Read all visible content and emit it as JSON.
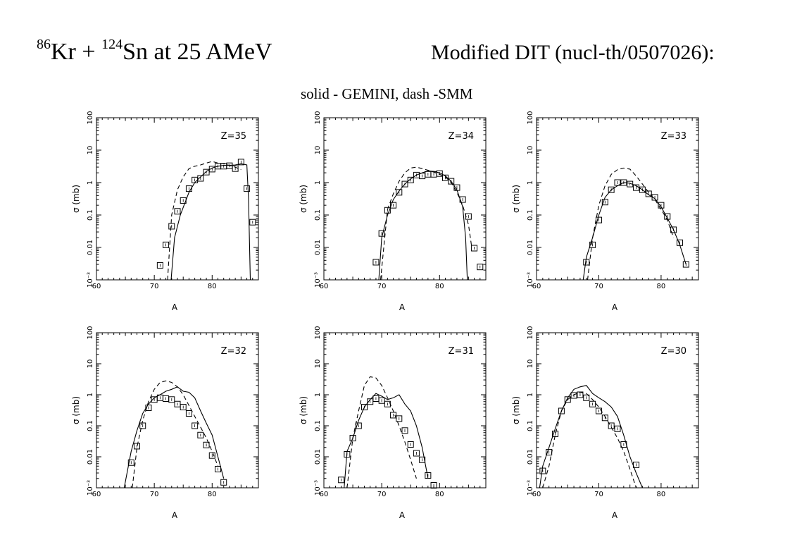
{
  "header": {
    "title_prefix_mass": "86",
    "title_kr": "Kr + ",
    "title_sn_mass": "124",
    "title_rest": "Sn at 25 AMeV",
    "right_title": "Modified DIT (nucl-th/0507026):",
    "subtitle": "solid - GEMINI, dash -SMM"
  },
  "chart_data": [
    {
      "type": "line",
      "label": "Z=35",
      "xlabel": "A",
      "ylabel": "σ (mb)",
      "xlim": [
        60,
        88
      ],
      "ylim": [
        0.001,
        100
      ],
      "log_y": true,
      "xticks": [
        60,
        70,
        80
      ],
      "yticks": [
        "10⁻³",
        "0.01",
        "0.1",
        "1",
        "10",
        "100"
      ],
      "series": [
        {
          "style": "markers-square",
          "x": [
            71,
            72,
            73,
            74,
            75,
            76,
            77,
            78,
            79,
            80,
            81,
            82,
            83,
            84,
            85,
            86,
            87
          ],
          "y": [
            0.0028,
            0.012,
            0.045,
            0.13,
            0.28,
            0.65,
            1.2,
            1.35,
            2.1,
            2.6,
            3.2,
            3.2,
            3.3,
            2.7,
            4.3,
            0.65,
            0.06
          ]
        },
        {
          "style": "solid",
          "x": [
            72.9,
            73.5,
            74.5,
            76,
            77,
            78,
            79,
            80,
            81,
            82,
            83,
            84,
            85,
            86,
            86.3,
            86.6
          ],
          "y": [
            0.001,
            0.02,
            0.1,
            0.5,
            1,
            1.5,
            2.2,
            2.8,
            3.2,
            3.4,
            3.4,
            3.5,
            3.8,
            3.5,
            0.3,
            0.001
          ]
        },
        {
          "style": "dashed",
          "x": [
            72.3,
            73,
            74,
            75,
            76,
            77,
            78,
            79,
            80,
            81,
            82,
            83,
            84,
            85
          ],
          "y": [
            0.001,
            0.1,
            0.6,
            1.5,
            2.7,
            3.2,
            3.5,
            4,
            4.5,
            4,
            3.8,
            3.4,
            3,
            2.5
          ]
        }
      ]
    },
    {
      "type": "line",
      "label": "Z=34",
      "xlabel": "A",
      "ylabel": "σ (mb)",
      "xlim": [
        60,
        88
      ],
      "ylim": [
        0.001,
        100
      ],
      "log_y": true,
      "xticks": [
        60,
        70,
        80
      ],
      "yticks": [
        "10⁻³",
        "0.01",
        "0.1",
        "1",
        "10",
        "100"
      ],
      "series": [
        {
          "style": "markers-square",
          "x": [
            69,
            70,
            71,
            72,
            73,
            74,
            75,
            76,
            77,
            78,
            79,
            80,
            81,
            82,
            83,
            84,
            85,
            86,
            87
          ],
          "y": [
            0.0035,
            0.027,
            0.14,
            0.2,
            0.5,
            0.9,
            1.2,
            1.7,
            1.6,
            1.8,
            1.8,
            1.9,
            1.4,
            1.1,
            0.7,
            0.3,
            0.09,
            0.0095,
            0.0025
          ]
        },
        {
          "style": "solid",
          "x": [
            69.5,
            70,
            71,
            72,
            73,
            74,
            75,
            76,
            77,
            78,
            79,
            80,
            81,
            82,
            83,
            84,
            84.5,
            84.8
          ],
          "y": [
            0.001,
            0.02,
            0.1,
            0.3,
            0.55,
            0.9,
            1.3,
            1.7,
            2,
            2.3,
            2.2,
            2,
            1.6,
            1.1,
            0.6,
            0.18,
            0.02,
            0.001
          ]
        },
        {
          "style": "dashed",
          "x": [
            69.8,
            71,
            72,
            73,
            74,
            75,
            76,
            77,
            78,
            79,
            80,
            81,
            82,
            83,
            84,
            85,
            85.5
          ],
          "y": [
            0.001,
            0.15,
            0.45,
            1.1,
            2,
            2.8,
            3,
            2.7,
            2.4,
            2.1,
            1.8,
            1.5,
            1,
            0.5,
            0.2,
            0.05,
            0.012
          ]
        }
      ]
    },
    {
      "type": "line",
      "label": "Z=33",
      "xlabel": "A",
      "ylabel": "σ (mb)",
      "xlim": [
        60,
        86
      ],
      "ylim": [
        0.001,
        100
      ],
      "log_y": true,
      "xticks": [
        60,
        70,
        80
      ],
      "yticks": [
        "10⁻³",
        "0.01",
        "0.1",
        "1",
        "10",
        "100"
      ],
      "series": [
        {
          "style": "markers-square",
          "x": [
            68,
            69,
            70,
            71,
            72,
            73,
            74,
            75,
            76,
            77,
            78,
            79,
            80,
            81,
            82,
            83,
            84
          ],
          "y": [
            0.0035,
            0.012,
            0.07,
            0.25,
            0.6,
            1,
            1,
            0.9,
            0.7,
            0.6,
            0.45,
            0.35,
            0.2,
            0.09,
            0.035,
            0.014,
            0.003
          ]
        },
        {
          "style": "solid",
          "x": [
            67.5,
            68,
            69,
            70,
            71,
            72,
            73,
            74,
            75,
            76,
            77,
            78,
            79,
            80,
            81,
            82,
            83,
            84
          ],
          "y": [
            0.001,
            0.005,
            0.02,
            0.1,
            0.35,
            0.6,
            0.8,
            1,
            0.95,
            0.8,
            0.6,
            0.42,
            0.32,
            0.18,
            0.08,
            0.035,
            0.012,
            0.003
          ]
        },
        {
          "style": "dashed",
          "x": [
            68.2,
            69,
            70,
            71,
            72,
            73,
            74,
            75,
            76,
            77,
            78,
            79,
            80,
            81,
            82
          ],
          "y": [
            0.001,
            0.02,
            0.2,
            0.8,
            1.8,
            2.5,
            2.8,
            2.6,
            1.6,
            0.9,
            0.5,
            0.3,
            0.15,
            0.07,
            0.02
          ]
        }
      ]
    },
    {
      "type": "line",
      "label": "Z=32",
      "xlabel": "A",
      "ylabel": "σ (mb)",
      "xlim": [
        60,
        88
      ],
      "ylim": [
        0.001,
        100
      ],
      "log_y": true,
      "xticks": [
        60,
        70,
        80
      ],
      "yticks": [
        "10⁻³",
        "0.01",
        "0.1",
        "1",
        "10",
        "100"
      ],
      "series": [
        {
          "style": "markers-square",
          "x": [
            66,
            67,
            68,
            69,
            70,
            71,
            72,
            73,
            74,
            75,
            76,
            77,
            78,
            79,
            80,
            81,
            82
          ],
          "y": [
            0.0065,
            0.022,
            0.1,
            0.38,
            0.7,
            0.8,
            0.75,
            0.7,
            0.5,
            0.4,
            0.25,
            0.1,
            0.05,
            0.024,
            0.011,
            0.004,
            0.0015
          ]
        },
        {
          "style": "solid",
          "x": [
            64.8,
            66,
            67,
            68,
            69,
            70,
            71,
            72,
            73,
            74,
            75,
            76,
            77,
            78,
            79,
            80,
            81,
            82
          ],
          "y": [
            0.001,
            0.015,
            0.07,
            0.25,
            0.5,
            0.8,
            1,
            1.3,
            1.5,
            1.8,
            1.3,
            1.2,
            0.8,
            0.3,
            0.12,
            0.05,
            0.01,
            0.002
          ]
        },
        {
          "style": "dashed",
          "x": [
            66.2,
            67,
            68,
            69,
            70,
            71,
            72,
            73,
            74,
            75,
            76,
            77,
            78,
            79,
            80,
            81
          ],
          "y": [
            0.001,
            0.02,
            0.15,
            0.6,
            1.5,
            2.5,
            2.8,
            2.5,
            1.8,
            1,
            0.45,
            0.2,
            0.09,
            0.04,
            0.015,
            0.005
          ]
        }
      ]
    },
    {
      "type": "line",
      "label": "Z=31",
      "xlabel": "A",
      "ylabel": "σ (mb)",
      "xlim": [
        60,
        88
      ],
      "ylim": [
        0.001,
        100
      ],
      "log_y": true,
      "xticks": [
        60,
        70,
        80
      ],
      "yticks": [
        "10⁻³",
        "0.01",
        "0.1",
        "1",
        "10",
        "100"
      ],
      "series": [
        {
          "style": "markers-square",
          "x": [
            63,
            64,
            65,
            66,
            67,
            68,
            69,
            70,
            71,
            72,
            73,
            74,
            75,
            76,
            77,
            78,
            79
          ],
          "y": [
            0.0018,
            0.012,
            0.04,
            0.1,
            0.4,
            0.6,
            0.75,
            0.65,
            0.5,
            0.22,
            0.17,
            0.07,
            0.025,
            0.013,
            0.008,
            0.0025,
            0.0012
          ]
        },
        {
          "style": "solid",
          "x": [
            63.5,
            64,
            65,
            66,
            67,
            68,
            69,
            70,
            71,
            72,
            73,
            74,
            75,
            76,
            77,
            78
          ],
          "y": [
            0.001,
            0.015,
            0.04,
            0.15,
            0.4,
            0.7,
            1.1,
            0.9,
            0.7,
            0.8,
            1,
            0.5,
            0.3,
            0.1,
            0.02,
            0.002
          ]
        },
        {
          "style": "dashed",
          "x": [
            64,
            65,
            66,
            67,
            68,
            69,
            70,
            71,
            72,
            73,
            74,
            75,
            76
          ],
          "y": [
            0.001,
            0.04,
            0.3,
            2,
            3.8,
            3.5,
            2,
            0.8,
            0.3,
            0.1,
            0.03,
            0.008,
            0.002
          ]
        }
      ]
    },
    {
      "type": "line",
      "label": "Z=30",
      "xlabel": "A",
      "ylabel": "σ (mb)",
      "xlim": [
        60,
        86
      ],
      "ylim": [
        0.001,
        100
      ],
      "log_y": true,
      "xticks": [
        60,
        70,
        80
      ],
      "yticks": [
        "10⁻³",
        "0.01",
        "0.1",
        "1",
        "10",
        "100"
      ],
      "series": [
        {
          "style": "markers-square",
          "x": [
            61,
            62,
            63,
            64,
            65,
            66,
            67,
            68,
            69,
            70,
            71,
            72,
            73,
            74,
            76
          ],
          "y": [
            0.0035,
            0.014,
            0.055,
            0.3,
            0.7,
            0.95,
            1,
            0.8,
            0.5,
            0.3,
            0.18,
            0.1,
            0.08,
            0.025,
            0.0055
          ]
        },
        {
          "style": "solid",
          "x": [
            60.5,
            61,
            62,
            63,
            64,
            65,
            66,
            67,
            68,
            69,
            70,
            71,
            72,
            73,
            74,
            75,
            76,
            77
          ],
          "y": [
            0.001,
            0.005,
            0.02,
            0.08,
            0.3,
            0.8,
            1.5,
            1.8,
            2,
            1.1,
            0.8,
            0.6,
            0.4,
            0.2,
            0.05,
            0.01,
            0.003,
            0.001
          ]
        },
        {
          "style": "dashed",
          "x": [
            61,
            62,
            63,
            64,
            65,
            66,
            67,
            68,
            69,
            70,
            71,
            72,
            73,
            74,
            75,
            76
          ],
          "y": [
            0.001,
            0.005,
            0.05,
            0.3,
            0.7,
            1,
            1.2,
            1.1,
            0.7,
            0.4,
            0.2,
            0.09,
            0.04,
            0.015,
            0.004,
            0.001
          ]
        }
      ]
    }
  ]
}
